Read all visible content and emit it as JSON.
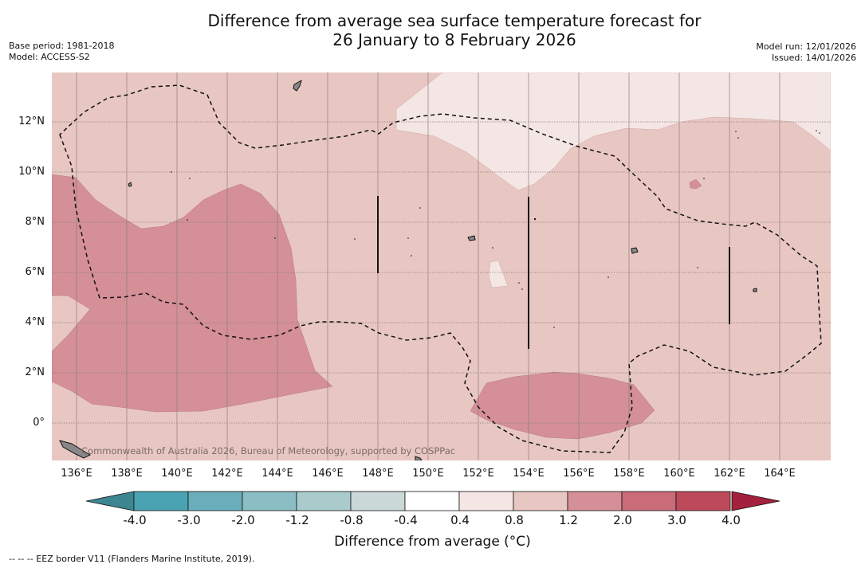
{
  "header": {
    "title_line1": "Difference from average sea surface temperature forecast for",
    "title_line2": "26 January to 8 February 2026",
    "base_period": "Base period: 1981-2018",
    "model": "Model: ACCESS-S2",
    "model_run": "Model run: 12/01/2026",
    "issued": "Issued: 14/01/2026"
  },
  "map": {
    "copyright": "Commonwealth of Australia 2026, Bureau of Meteorology, supported by COSPPac",
    "lat_labels": [
      "12°N",
      "10°N",
      "8°N",
      "6°N",
      "4°N",
      "2°N",
      "0°"
    ],
    "lon_labels": [
      "136°E",
      "138°E",
      "140°E",
      "142°E",
      "144°E",
      "146°E",
      "148°E",
      "150°E",
      "152°E",
      "154°E",
      "156°E",
      "158°E",
      "160°E",
      "162°E",
      "164°E"
    ]
  },
  "colorbar": {
    "ticks": [
      "-4.0",
      "-3.0",
      "-2.0",
      "-1.2",
      "-0.8",
      "-0.4",
      "0.4",
      "0.8",
      "1.2",
      "2.0",
      "3.0",
      "4.0"
    ],
    "colors": [
      "#4aa3b3",
      "#6aaebb",
      "#8bbdc4",
      "#aacbcc",
      "#cbd8d8",
      "#ffffff",
      "#f4e6e4",
      "#e8c7c2",
      "#d48f97",
      "#c96b78",
      "#bd4a5a"
    ],
    "low_color": "#3d8691",
    "high_color": "#a3213c",
    "title": "Difference from average (°C)"
  },
  "footnote": "--  --  -- EEZ border V11 (Flanders Marine Institute, 2019)."
}
